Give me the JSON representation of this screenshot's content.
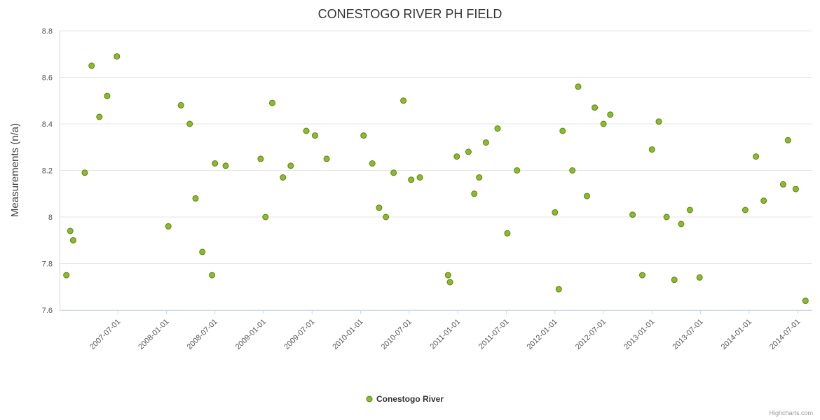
{
  "title": "CONESTOGO RIVER PH FIELD",
  "y_axis": {
    "title": "Measurements (n/a)"
  },
  "legend": {
    "label": "Conestogo River"
  },
  "credits": "Highcharts.com",
  "colors": {
    "marker_fill": "#8cbb2a",
    "marker_stroke": "#5c8018",
    "grid": "#e6e6e6",
    "axis_line": "#ccd6eb",
    "tick_label": "#555555",
    "title": "#333333"
  },
  "chart_data": {
    "type": "scatter",
    "title": "CONESTOGO RIVER PH FIELD",
    "xlabel": "",
    "ylabel": "Measurements (n/a)",
    "xlim": [
      2006.9,
      2014.65
    ],
    "ylim": [
      7.6,
      8.8
    ],
    "grid": "horizontal",
    "legend_position": "bottom-center",
    "y_ticks": [
      {
        "value": 7.6,
        "label": "7.6"
      },
      {
        "value": 7.8,
        "label": "7.8"
      },
      {
        "value": 8.0,
        "label": "8"
      },
      {
        "value": 8.2,
        "label": "8.2"
      },
      {
        "value": 8.4,
        "label": "8.4"
      },
      {
        "value": 8.6,
        "label": "8.6"
      },
      {
        "value": 8.8,
        "label": "8.8"
      }
    ],
    "x_ticks": [
      {
        "value": 2007.5,
        "label": "2007-07-01"
      },
      {
        "value": 2008.0,
        "label": "2008-01-01"
      },
      {
        "value": 2008.5,
        "label": "2008-07-01"
      },
      {
        "value": 2009.0,
        "label": "2009-01-01"
      },
      {
        "value": 2009.5,
        "label": "2009-07-01"
      },
      {
        "value": 2010.0,
        "label": "2010-01-01"
      },
      {
        "value": 2010.5,
        "label": "2010-07-01"
      },
      {
        "value": 2011.0,
        "label": "2011-01-01"
      },
      {
        "value": 2011.5,
        "label": "2011-07-01"
      },
      {
        "value": 2012.0,
        "label": "2012-01-01"
      },
      {
        "value": 2012.5,
        "label": "2012-07-01"
      },
      {
        "value": 2013.0,
        "label": "2013-01-01"
      },
      {
        "value": 2013.5,
        "label": "2013-07-01"
      },
      {
        "value": 2014.0,
        "label": "2014-01-01"
      },
      {
        "value": 2014.5,
        "label": "2014-07-01"
      }
    ],
    "series": [
      {
        "name": "Conestogo River",
        "points": [
          [
            2006.97,
            7.75
          ],
          [
            2007.01,
            7.94
          ],
          [
            2007.04,
            7.9
          ],
          [
            2007.16,
            8.19
          ],
          [
            2007.23,
            8.65
          ],
          [
            2007.31,
            8.43
          ],
          [
            2007.39,
            8.52
          ],
          [
            2007.49,
            8.69
          ],
          [
            2008.02,
            7.96
          ],
          [
            2008.15,
            8.48
          ],
          [
            2008.24,
            8.4
          ],
          [
            2008.3,
            8.08
          ],
          [
            2008.37,
            7.85
          ],
          [
            2008.47,
            7.75
          ],
          [
            2008.5,
            8.23
          ],
          [
            2008.61,
            8.22
          ],
          [
            2008.97,
            8.25
          ],
          [
            2009.02,
            8.0
          ],
          [
            2009.09,
            8.49
          ],
          [
            2009.2,
            8.17
          ],
          [
            2009.28,
            8.22
          ],
          [
            2009.44,
            8.37
          ],
          [
            2009.53,
            8.35
          ],
          [
            2009.65,
            8.25
          ],
          [
            2010.03,
            8.35
          ],
          [
            2010.12,
            8.23
          ],
          [
            2010.19,
            8.04
          ],
          [
            2010.26,
            8.0
          ],
          [
            2010.34,
            8.19
          ],
          [
            2010.44,
            8.5
          ],
          [
            2010.52,
            8.16
          ],
          [
            2010.61,
            8.17
          ],
          [
            2010.9,
            7.75
          ],
          [
            2010.92,
            7.72
          ],
          [
            2010.99,
            8.26
          ],
          [
            2011.11,
            8.28
          ],
          [
            2011.17,
            8.1
          ],
          [
            2011.22,
            8.17
          ],
          [
            2011.29,
            8.32
          ],
          [
            2011.41,
            8.38
          ],
          [
            2011.51,
            7.93
          ],
          [
            2011.61,
            8.2
          ],
          [
            2012.0,
            8.02
          ],
          [
            2012.04,
            7.69
          ],
          [
            2012.08,
            8.37
          ],
          [
            2012.18,
            8.2
          ],
          [
            2012.24,
            8.56
          ],
          [
            2012.33,
            8.09
          ],
          [
            2012.41,
            8.47
          ],
          [
            2012.5,
            8.4
          ],
          [
            2012.57,
            8.44
          ],
          [
            2012.8,
            8.01
          ],
          [
            2012.9,
            7.75
          ],
          [
            2013.0,
            8.29
          ],
          [
            2013.07,
            8.41
          ],
          [
            2013.15,
            8.0
          ],
          [
            2013.23,
            7.73
          ],
          [
            2013.3,
            7.97
          ],
          [
            2013.39,
            8.03
          ],
          [
            2013.49,
            7.74
          ],
          [
            2013.96,
            8.03
          ],
          [
            2014.07,
            8.26
          ],
          [
            2014.15,
            8.07
          ],
          [
            2014.35,
            8.14
          ],
          [
            2014.4,
            8.33
          ],
          [
            2014.48,
            8.12
          ],
          [
            2014.58,
            7.64
          ]
        ]
      }
    ]
  }
}
